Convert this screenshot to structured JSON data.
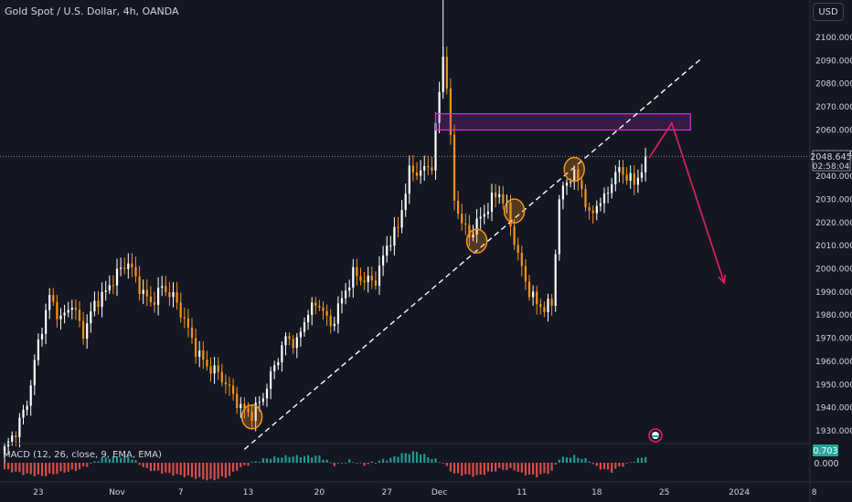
{
  "title": "Gold Spot / U.S. Dollar, 4h, OANDA",
  "currency": "USD",
  "macd_label": "MACD (12, 26, close, 9, EMA, EMA)",
  "colors": {
    "background": "#131722",
    "up": "#ffffff",
    "down": "#f7931a",
    "trendline": "#ffffff",
    "zone_border": "#d535d5",
    "arrow": "#e91e63",
    "circle": "#f7931a",
    "hist_pos": "#26a69a",
    "hist_neg": "#ef5350"
  },
  "price_badge": {
    "price": "2048.645",
    "countdown": "02:58:04"
  },
  "macd_badge": {
    "value": "0.703",
    "zero": "0.000"
  },
  "chart_data": {
    "type": "candlestick",
    "y_ticks": [
      "2100.000",
      "2090.000",
      "2080.000",
      "2070.000",
      "2060.000",
      "2050.000",
      "2040.000",
      "2030.000",
      "2020.000",
      "2010.000",
      "2000.000",
      "1990.000",
      "1980.000",
      "1970.000",
      "1960.000",
      "1950.000",
      "1940.000",
      "1930.000"
    ],
    "ylim": [
      1920,
      2110
    ],
    "x_ticks": [
      {
        "label": "23",
        "index": 9
      },
      {
        "label": "Nov",
        "index": 30
      },
      {
        "label": "7",
        "index": 47
      },
      {
        "label": "13",
        "index": 65
      },
      {
        "label": "20",
        "index": 84
      },
      {
        "label": "27",
        "index": 102
      },
      {
        "label": "Dec",
        "index": 116
      },
      {
        "label": "11",
        "index": 138
      },
      {
        "label": "18",
        "index": 158
      },
      {
        "label": "25",
        "index": 176
      },
      {
        "label": "2024",
        "index": 196
      },
      {
        "label": "8",
        "index": 216
      }
    ],
    "series": [
      {
        "name": "price",
        "anchors": [
          [
            0,
            1922
          ],
          [
            3,
            1930
          ],
          [
            6,
            1942
          ],
          [
            9,
            1968
          ],
          [
            12,
            1988
          ],
          [
            15,
            1978
          ],
          [
            18,
            1985
          ],
          [
            21,
            1972
          ],
          [
            24,
            1985
          ],
          [
            27,
            1990
          ],
          [
            30,
            1998
          ],
          [
            33,
            2003
          ],
          [
            36,
            1992
          ],
          [
            39,
            1985
          ],
          [
            42,
            1992
          ],
          [
            45,
            1988
          ],
          [
            48,
            1978
          ],
          [
            51,
            1965
          ],
          [
            54,
            1958
          ],
          [
            57,
            1955
          ],
          [
            60,
            1948
          ],
          [
            63,
            1940
          ],
          [
            66,
            1937
          ],
          [
            69,
            1945
          ],
          [
            72,
            1958
          ],
          [
            75,
            1970
          ],
          [
            78,
            1968
          ],
          [
            81,
            1982
          ],
          [
            84,
            1985
          ],
          [
            87,
            1975
          ],
          [
            90,
            1987
          ],
          [
            93,
            1998
          ],
          [
            96,
            1995
          ],
          [
            99,
            1995
          ],
          [
            102,
            2010
          ],
          [
            105,
            2018
          ],
          [
            108,
            2042
          ],
          [
            111,
            2042
          ],
          [
            114,
            2045
          ],
          [
            117,
            2092
          ],
          [
            118,
            2080
          ],
          [
            119,
            2055
          ],
          [
            120,
            2030
          ],
          [
            122,
            2020
          ],
          [
            124,
            2014
          ],
          [
            126,
            2020
          ],
          [
            128,
            2024
          ],
          [
            130,
            2030
          ],
          [
            132,
            2033
          ],
          [
            134,
            2026
          ],
          [
            136,
            2012
          ],
          [
            138,
            2000
          ],
          [
            140,
            1990
          ],
          [
            142,
            1985
          ],
          [
            144,
            1983
          ],
          [
            146,
            1985
          ],
          [
            148,
            2030
          ],
          [
            150,
            2038
          ],
          [
            152,
            2041
          ],
          [
            154,
            2035
          ],
          [
            156,
            2022
          ],
          [
            158,
            2028
          ],
          [
            160,
            2030
          ],
          [
            162,
            2038
          ],
          [
            164,
            2043
          ],
          [
            166,
            2040
          ],
          [
            168,
            2037
          ],
          [
            170,
            2043
          ],
          [
            171,
            2048.6
          ]
        ]
      },
      {
        "name": "MACD histogram",
        "anchors": [
          [
            0,
            -3
          ],
          [
            5,
            -5
          ],
          [
            10,
            -6
          ],
          [
            20,
            -3
          ],
          [
            26,
            2
          ],
          [
            33,
            3
          ],
          [
            38,
            -3
          ],
          [
            44,
            -5
          ],
          [
            48,
            -6
          ],
          [
            55,
            -8
          ],
          [
            60,
            -6
          ],
          [
            62,
            -3
          ],
          [
            66,
            0
          ],
          [
            70,
            2
          ],
          [
            76,
            3
          ],
          [
            84,
            3
          ],
          [
            88,
            -1
          ],
          [
            92,
            1
          ],
          [
            96,
            -1
          ],
          [
            100,
            1
          ],
          [
            103,
            2
          ],
          [
            106,
            4
          ],
          [
            110,
            5
          ],
          [
            114,
            2
          ],
          [
            117,
            0
          ],
          [
            118,
            -2
          ],
          [
            120,
            -5
          ],
          [
            126,
            -6
          ],
          [
            132,
            -3
          ],
          [
            136,
            -3
          ],
          [
            138,
            -5
          ],
          [
            142,
            -6
          ],
          [
            146,
            -4
          ],
          [
            148,
            2
          ],
          [
            152,
            3
          ],
          [
            156,
            1
          ],
          [
            158,
            -2
          ],
          [
            162,
            -4
          ],
          [
            164,
            -2
          ],
          [
            168,
            1
          ],
          [
            171,
            3
          ]
        ]
      }
    ],
    "annotations": {
      "resistance_zone": {
        "x_start": 115,
        "x_end": 183,
        "y_low": 2060,
        "y_high": 2067
      },
      "trendline": {
        "x1": 64,
        "y1": 1922,
        "x2": 186,
        "y2": 2091
      },
      "projection_arrow": [
        [
          172,
          2048
        ],
        [
          178,
          2063
        ],
        [
          192,
          1994
        ]
      ],
      "circles": [
        {
          "x": 66,
          "y": 1936
        },
        {
          "x": 126,
          "y": 2012
        },
        {
          "x": 136,
          "y": 2025
        },
        {
          "x": 152,
          "y": 2043
        }
      ]
    }
  }
}
